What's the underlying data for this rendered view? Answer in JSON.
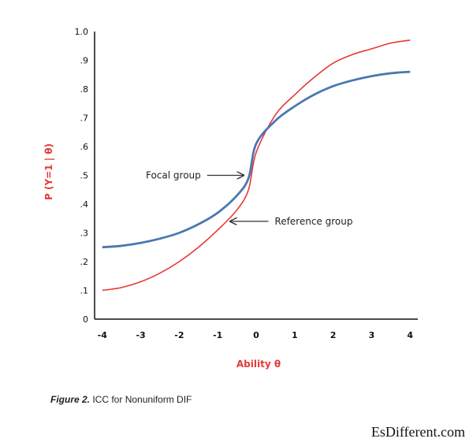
{
  "chart_data": {
    "type": "line",
    "title": "",
    "xlabel": "Ability θ",
    "ylabel": "P (Y=1 | θ)",
    "xlim": [
      -4.2,
      4.2
    ],
    "ylim": [
      0,
      1.0
    ],
    "x_ticks": [
      -4,
      -3,
      -2,
      -1,
      0,
      1,
      2,
      3,
      4
    ],
    "x_tick_labels": [
      "-4",
      "-3",
      "-2",
      "-1",
      "0",
      "1",
      "2",
      "3",
      "4"
    ],
    "y_ticks": [
      0,
      0.1,
      0.2,
      0.3,
      0.4,
      0.5,
      0.6,
      0.7,
      0.8,
      0.9,
      1.0
    ],
    "y_tick_labels": [
      "0",
      ".1",
      ".2",
      ".3",
      ".4",
      ".5",
      ".6",
      ".7",
      ".8",
      ".9",
      "1.0"
    ],
    "grid": false,
    "series": [
      {
        "name": "Reference group",
        "color": "#e53935",
        "x": [
          -4,
          -3.5,
          -3,
          -2.5,
          -2,
          -1.5,
          -1,
          -0.5,
          -0.2,
          0,
          0.5,
          1,
          1.5,
          2,
          2.5,
          3,
          3.5,
          4
        ],
        "y": [
          0.1,
          0.11,
          0.13,
          0.16,
          0.2,
          0.25,
          0.31,
          0.38,
          0.45,
          0.58,
          0.71,
          0.78,
          0.84,
          0.89,
          0.92,
          0.94,
          0.96,
          0.97
        ]
      },
      {
        "name": "Focal group",
        "color": "#4a78b0",
        "x": [
          -4,
          -3.5,
          -3,
          -2.5,
          -2,
          -1.5,
          -1,
          -0.5,
          -0.2,
          0,
          0.5,
          1,
          1.5,
          2,
          2.5,
          3,
          3.5,
          4
        ],
        "y": [
          0.25,
          0.255,
          0.265,
          0.28,
          0.3,
          0.33,
          0.37,
          0.43,
          0.49,
          0.61,
          0.69,
          0.74,
          0.78,
          0.81,
          0.83,
          0.845,
          0.855,
          0.86
        ]
      }
    ],
    "annotations": [
      {
        "text": "Focal group",
        "target_x": -0.25,
        "target_y": 0.5,
        "arrow": "right"
      },
      {
        "text": "Reference group",
        "target_x": -0.75,
        "target_y": 0.34,
        "arrow": "left"
      }
    ]
  },
  "caption": {
    "label": "Figure 2.",
    "text": " ICC for Nonuniform  DIF"
  },
  "watermark": "EsDifferent.com"
}
